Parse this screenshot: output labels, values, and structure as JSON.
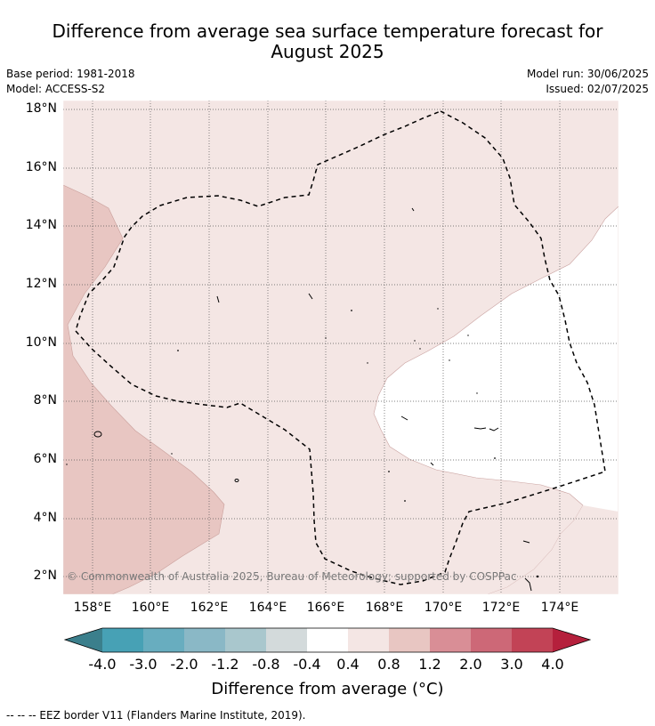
{
  "title": {
    "line1": "Difference from average sea surface temperature forecast for",
    "line2": "August 2025"
  },
  "meta": {
    "base_period": "Base period: 1981-2018",
    "model": "Model: ACCESS-S2",
    "model_run": "Model run: 30/06/2025",
    "issued": "Issued: 02/07/2025"
  },
  "axes": {
    "lat_ticks": [
      "18°N",
      "16°N",
      "14°N",
      "12°N",
      "10°N",
      "8°N",
      "6°N",
      "4°N",
      "2°N"
    ],
    "lon_ticks": [
      "158°E",
      "160°E",
      "162°E",
      "164°E",
      "166°E",
      "168°E",
      "170°E",
      "172°E",
      "174°E"
    ]
  },
  "copyright": "© Commonwealth of Australia 2025, Bureau of Meteorology; supported by COSPPac",
  "colorbar": {
    "ticks": [
      "-4.0",
      "-3.0",
      "-2.0",
      "-1.2",
      "-0.8",
      "-0.4",
      "0.4",
      "0.8",
      "1.2",
      "2.0",
      "3.0",
      "4.0"
    ],
    "colors": [
      "#3b7f8c",
      "#47a1b5",
      "#68adbf",
      "#8ab8c6",
      "#a9c7cd",
      "#d3dadb",
      "#ffffff",
      "#f4e6e4",
      "#e8c6c2",
      "#d98e96",
      "#cd6877",
      "#c24356",
      "#b5203c"
    ],
    "label": "Difference from average (°C)"
  },
  "legend_note": "--  --  -- EEZ border V11 (Flanders Marine Institute, 2019)."
}
